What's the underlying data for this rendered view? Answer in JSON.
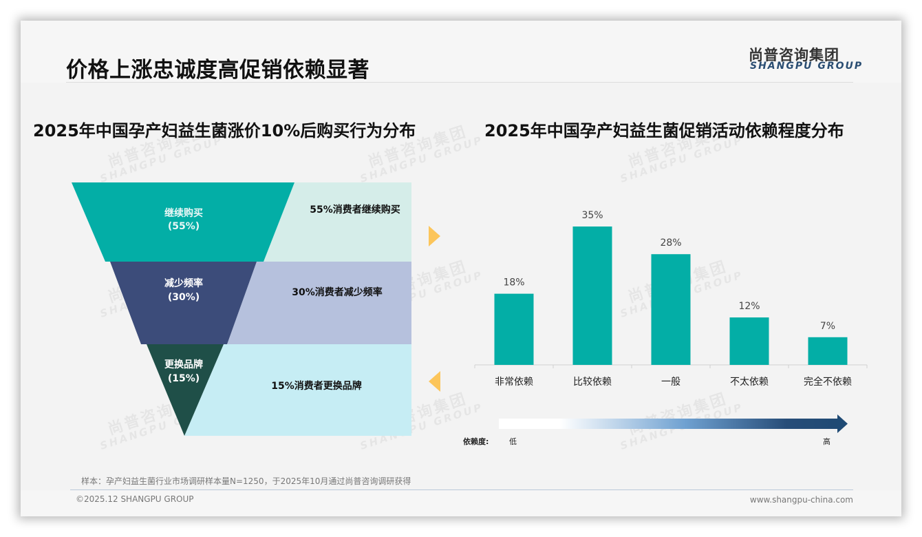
{
  "header": {
    "title": "价格上涨忠诚度高促销依赖显著",
    "logo_cn": "尚普咨询集团",
    "logo_en": "SHANGPU GROUP"
  },
  "watermark": {
    "cn": "尚普咨询集团",
    "en": "SHANGPU GROUP"
  },
  "left_chart": {
    "title": "2025年中国孕产妇益生菌涨价10%后购买行为分布",
    "stages": [
      {
        "name": "继续购买",
        "pct": "(55%)",
        "desc": "55%消费者继续购买",
        "color": "#03aea6",
        "band_color": "#d5ede9"
      },
      {
        "name": "减少频率",
        "pct": "(30%)",
        "desc": "30%消费者减少频率",
        "color": "#3c4c7a",
        "band_color": "#b6c1dd"
      },
      {
        "name": "更换品牌",
        "pct": "(15%)",
        "desc": "15%消费者更换品牌",
        "color": "#1f4f48",
        "band_color": "#c6edf4"
      }
    ],
    "arrow_color": "#fcc55a"
  },
  "right_chart": {
    "title": "2025年中国孕产妇益生菌促销活动依赖程度分布",
    "bar_color": "#03aea6",
    "scale_label": "依赖度:",
    "scale_low": "低",
    "scale_high": "高"
  },
  "chart_data": [
    {
      "type": "funnel",
      "title": "2025年中国孕产妇益生菌涨价10%后购买行为分布",
      "categories": [
        "继续购买",
        "减少频率",
        "更换品牌"
      ],
      "values": [
        55,
        30,
        15
      ],
      "unit": "%",
      "annotations": [
        "55%消费者继续购买",
        "30%消费者减少频率",
        "15%消费者更换品牌"
      ]
    },
    {
      "type": "bar",
      "title": "2025年中国孕产妇益生菌促销活动依赖程度分布",
      "categories": [
        "非常依赖",
        "比较依赖",
        "一般",
        "不太依赖",
        "完全不依赖"
      ],
      "values": [
        18,
        35,
        28,
        12,
        7
      ],
      "labels": [
        "18%",
        "35%",
        "28%",
        "12%",
        "7%"
      ],
      "xlabel": "",
      "ylabel": "",
      "ylim": [
        0,
        35
      ],
      "grid": false,
      "legend": "依赖度: 低 → 高"
    }
  ],
  "footer": {
    "note": "样本：孕产妇益生菌行业市场调研样本量N=1250，于2025年10月通过尚普咨询调研获得",
    "copyright": "©2025.12 SHANGPU GROUP",
    "website": "www.shangpu-china.com"
  }
}
